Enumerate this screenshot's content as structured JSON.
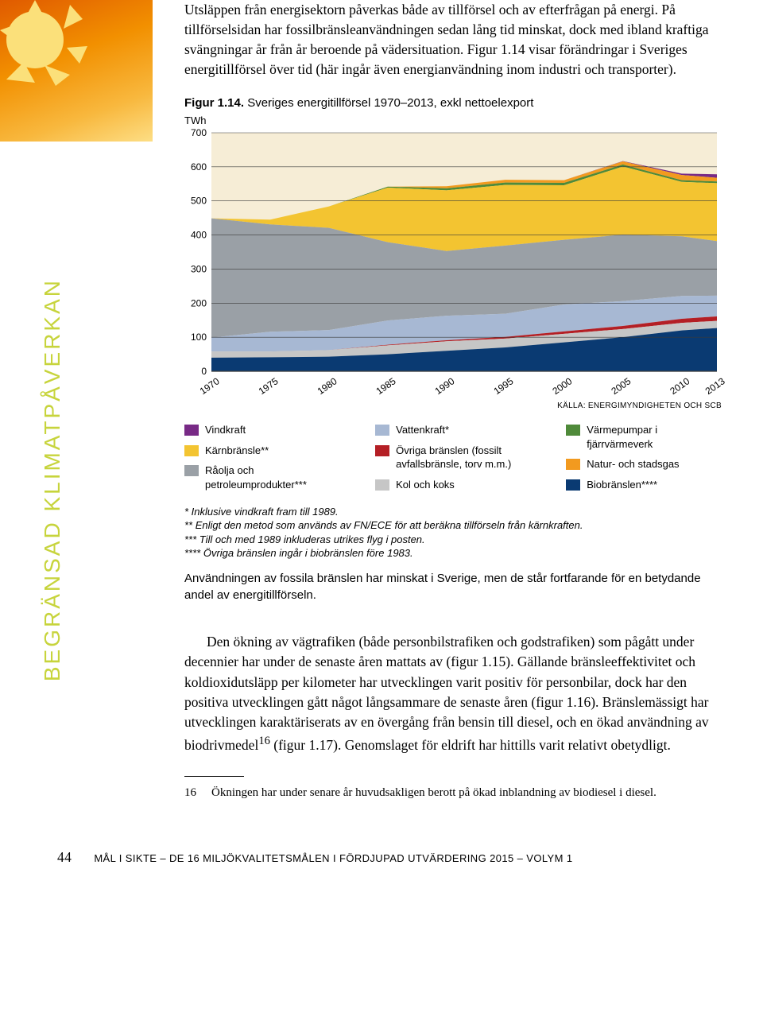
{
  "sidebar": {
    "vertical_label": "BEGRÄNSAD KLIMATPÅVERKAN"
  },
  "intro": {
    "p1": "Utsläppen från energisektorn påverkas både av tillförsel och av efterfrågan på energi. På tillförselsidan har fossilbränsleanvändningen sedan lång tid minskat, dock med ibland kraftiga svängningar år från år beroende på vädersituation. Figur 1.14 visar förändringar i Sveriges energitillförsel över tid (här ingår även energianvändning inom industri och transporter)."
  },
  "figure": {
    "caption_bold": "Figur 1.14.",
    "caption_text": "Sveriges energitillförsel 1970–2013, exkl nettoelexport",
    "chart": {
      "type": "area",
      "y_unit": "TWh",
      "ylim": [
        0,
        700
      ],
      "ytick_step": 100,
      "x_years": [
        1970,
        1975,
        1980,
        1985,
        1990,
        1995,
        2000,
        2005,
        2010,
        2013
      ],
      "background": "#f6edd6",
      "grid_color": "#3a3a3a",
      "series_order": [
        "biofuel",
        "coal",
        "other_fossil",
        "hydro",
        "oil",
        "nuclear",
        "heatpump",
        "natgas",
        "wind"
      ],
      "colors": {
        "wind": "#782a86",
        "nuclear": "#f3c431",
        "oil": "#9aa0a6",
        "hydro": "#a7b8d3",
        "other_fossil": "#b41f25",
        "coal": "#c6c6c6",
        "heatpump": "#4f8a3a",
        "natgas": "#f29a1f",
        "biofuel": "#0a3a72"
      },
      "labels": {
        "wind": "Vindkraft",
        "nuclear": "Kärnbränsle**",
        "oil": "Råolja och petroleumprodukter***",
        "hydro": "Vattenkraft*",
        "other_fossil": "Övriga bränslen (fossilt avfallsbränsle, torv m.m.)",
        "coal": "Kol och koks",
        "heatpump": "Värmepumpar i fjärrvärmeverk",
        "natgas": "Natur- och stadsgas",
        "biofuel": "Biobränslen****"
      },
      "values": {
        "biofuel": [
          40,
          41,
          43,
          50,
          60,
          70,
          85,
          100,
          120,
          127
        ],
        "coal": [
          18,
          17,
          19,
          26,
          28,
          26,
          25,
          24,
          22,
          21
        ],
        "other_fossil": [
          0,
          0,
          0,
          2,
          3,
          5,
          7,
          9,
          12,
          13
        ],
        "hydro": [
          41,
          58,
          59,
          71,
          72,
          68,
          79,
          73,
          67,
          61
        ],
        "oil": [
          350,
          315,
          300,
          230,
          190,
          200,
          190,
          195,
          175,
          160
        ],
        "nuclear": [
          0,
          14,
          63,
          160,
          178,
          178,
          160,
          200,
          160,
          170
        ],
        "heatpump": [
          0,
          0,
          0,
          3,
          6,
          7,
          7,
          6,
          5,
          5
        ],
        "natgas": [
          0,
          0,
          0,
          0,
          6,
          8,
          8,
          9,
          15,
          11
        ],
        "wind": [
          0,
          0,
          0,
          0,
          0,
          0,
          0,
          1,
          4,
          10
        ]
      }
    },
    "source": "KÄLLA: ENERGIMYNDIGHETEN OCH SCB",
    "footnotes": [
      "* Inklusive vindkraft fram till 1989.",
      "** Enligt den metod som används av FN/ECE för att beräkna tillförseln från kärnkraften.",
      "*** Till och med 1989 inkluderas utrikes flyg i posten.",
      "**** Övriga bränslen ingår i biobränslen före 1983."
    ],
    "closing": "Användningen av fossila bränslen har minskat i Sverige, men de står fortfarande för en betydande andel av energitillförseln."
  },
  "body": {
    "p1": "Den ökning av vägtrafiken (både personbilstrafiken och godstrafiken) som pågått under decennier har under de senaste åren mattats av (figur 1.15). Gällande bränsleeffektivitet och koldioxidutsläpp per kilometer har utvecklingen varit positiv för personbilar, dock har den positiva utvecklingen gått något långsammare de senaste åren (figur 1.16). Bränslemässigt har utvecklingen karaktäriserats av en övergång från bensin till diesel, och en ökad användning av biodrivmedel",
    "sup": "16",
    "p1b": "(figur 1.17). Genomslaget för eldrift har hittills varit relativt obetydligt."
  },
  "endnote": {
    "num": "16",
    "text": "Ökningen har under senare år huvudsakligen berott på ökad inblandning av biodiesel i diesel."
  },
  "footer": {
    "page": "44",
    "line": "MÅL I SIKTE – DE 16 MILJÖKVALITETSMÅLEN I FÖRDJUPAD UTVÄRDERING 2015 – VOLYM 1"
  }
}
